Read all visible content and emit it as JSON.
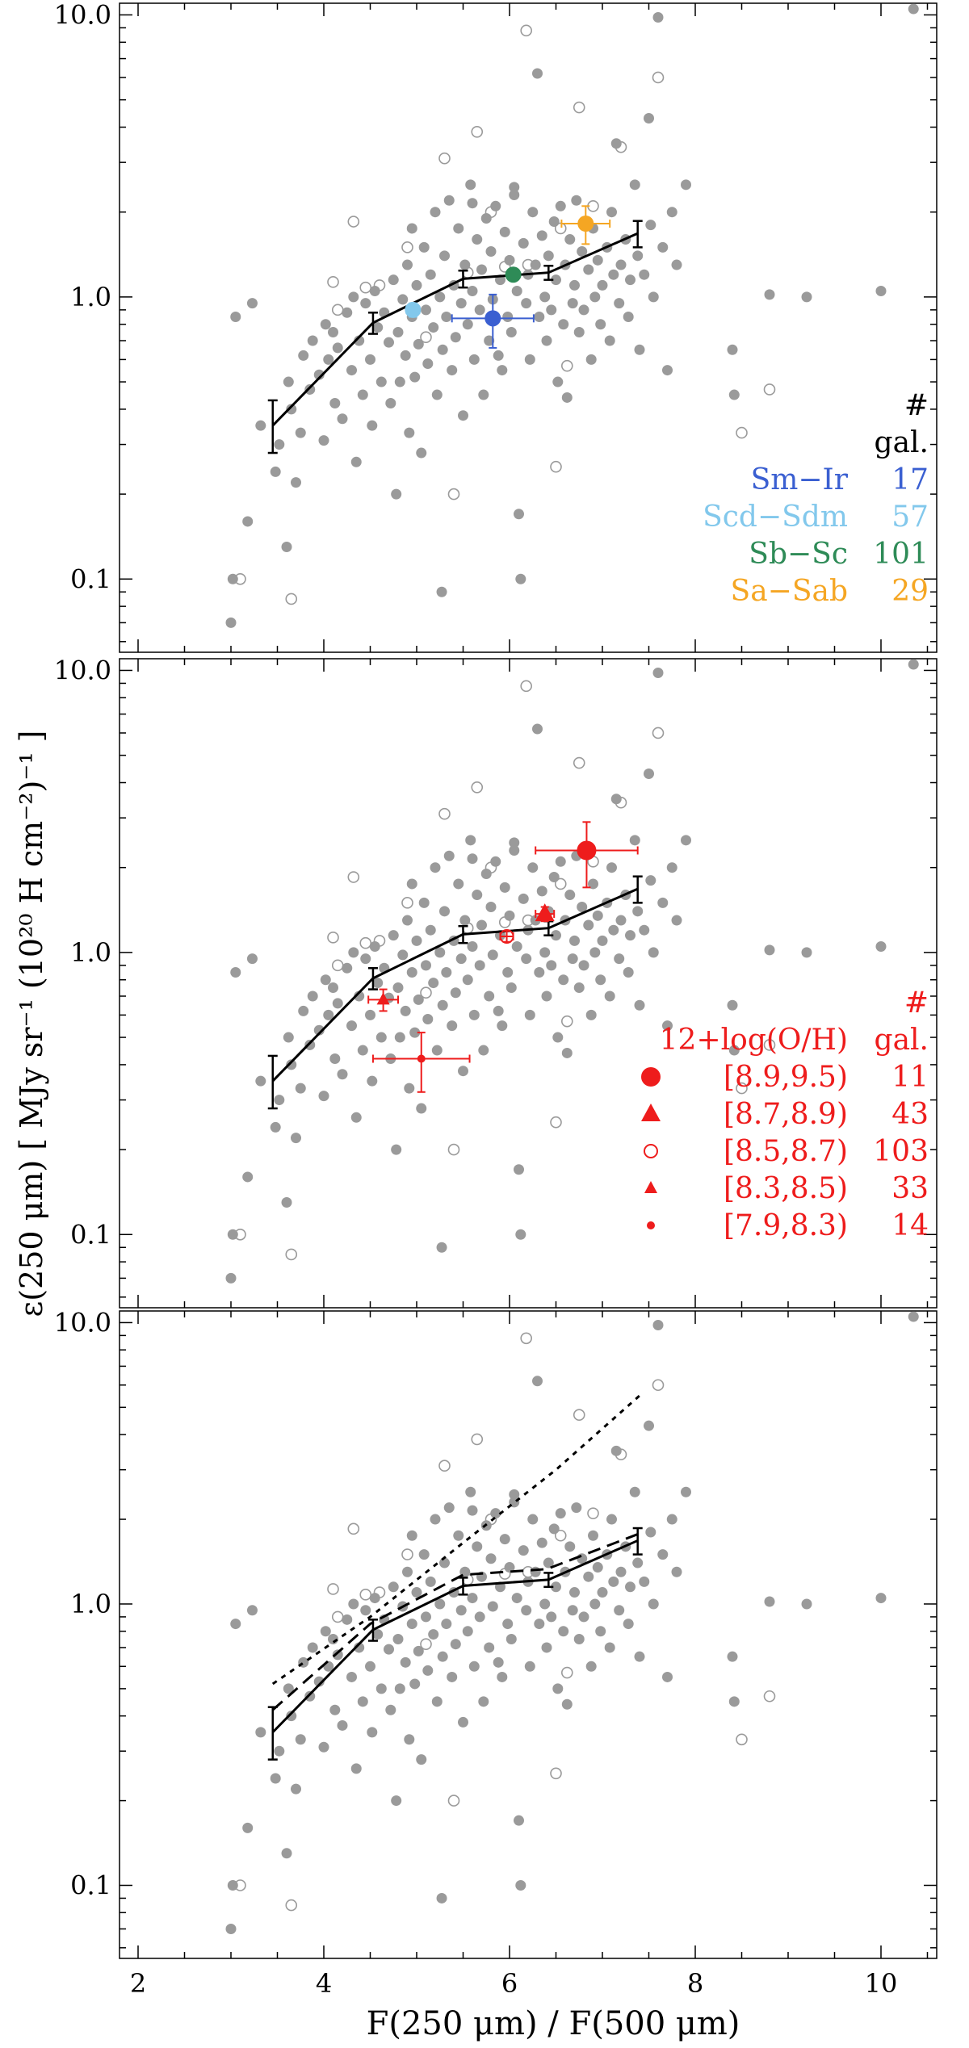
{
  "figure": {
    "xlabel": "F(250 μm) / F(500 μm)",
    "ylabel": "ε(250 μm) [ MJy sr⁻¹ (10²⁰ H cm⁻²)⁻¹ ]"
  },
  "chart_data": [
    {
      "type": "scatter",
      "panel": "top",
      "xlim": [
        1.8,
        10.6
      ],
      "ylim": [
        0.055,
        11.0
      ],
      "yscale": "log",
      "x_ticks": [
        2,
        4,
        6,
        8,
        10
      ],
      "x_tick_labels": [],
      "y_ticks": [
        0.1,
        1.0,
        10.0
      ],
      "y_tick_labels": [
        "0.1",
        "1.0",
        "10.0"
      ],
      "grid": false,
      "legend": {
        "position": "bottom-right",
        "header": [
          "#",
          "gal."
        ],
        "entries": [
          {
            "name": "Sm−Ir",
            "count": "17",
            "color": "#3a5fd1"
          },
          {
            "name": "Scd−Sdm",
            "count": "57",
            "color": "#82c8ec"
          },
          {
            "name": "Sb−Sc",
            "count": "101",
            "color": "#2e8b57"
          },
          {
            "name": "Sa−Sab",
            "count": "29",
            "color": "#f5a623"
          }
        ]
      },
      "series": [
        {
          "name": "Sm−Ir",
          "color": "#3a5fd1",
          "points": [
            {
              "x": 5.82,
              "y": 0.84,
              "xerr": 0.44,
              "yerr_lo": 0.18,
              "yerr_hi": 0.18
            }
          ]
        },
        {
          "name": "Scd−Sdm",
          "color": "#82c8ec",
          "points": [
            {
              "x": 4.96,
              "y": 0.9,
              "xerr": 0.07,
              "yerr_lo": 0.05,
              "yerr_hi": 0.05
            }
          ]
        },
        {
          "name": "Sb−Sc",
          "color": "#2e8b57",
          "points": [
            {
              "x": 6.04,
              "y": 1.2,
              "xerr": 0.06,
              "yerr_lo": 0.05,
              "yerr_hi": 0.05
            }
          ]
        },
        {
          "name": "Sa−Sab",
          "color": "#f5a623",
          "points": [
            {
              "x": 6.82,
              "y": 1.82,
              "xerr": 0.26,
              "yerr_lo": 0.28,
              "yerr_hi": 0.28
            }
          ]
        }
      ]
    },
    {
      "type": "scatter",
      "panel": "middle",
      "xlim": [
        1.8,
        10.6
      ],
      "ylim": [
        0.055,
        11.0
      ],
      "yscale": "log",
      "x_ticks": [
        2,
        4,
        6,
        8,
        10
      ],
      "x_tick_labels": [],
      "y_ticks": [
        0.1,
        1.0,
        10.0
      ],
      "y_tick_labels": [
        "0.1",
        "1.0",
        "10.0"
      ],
      "grid": false,
      "legend": {
        "position": "bottom-right",
        "header": [
          "#",
          "12+log(O/H)",
          "gal."
        ],
        "entries": [
          {
            "name": "[8.9,9.5)",
            "count": "11",
            "marker": "big-circle"
          },
          {
            "name": "[8.7,8.9)",
            "count": "43",
            "marker": "big-triangle"
          },
          {
            "name": "[8.5,8.7)",
            "count": "103",
            "marker": "open-circle"
          },
          {
            "name": "[8.3,8.5)",
            "count": "33",
            "marker": "small-triangle"
          },
          {
            "name": "[7.9,8.3)",
            "count": "14",
            "marker": "small-circle"
          }
        ],
        "color": "#ee1c1c"
      },
      "series": [
        {
          "name": "[8.9,9.5)",
          "marker": "big-circle",
          "color": "#ee1c1c",
          "points": [
            {
              "x": 6.83,
              "y": 2.3,
              "xerr": 0.55,
              "yerr_lo": 0.6,
              "yerr_hi": 0.6
            }
          ]
        },
        {
          "name": "[8.7,8.9)",
          "marker": "big-triangle",
          "color": "#ee1c1c",
          "points": [
            {
              "x": 6.38,
              "y": 1.37,
              "xerr": 0.1,
              "yerr_lo": 0.08,
              "yerr_hi": 0.08
            }
          ]
        },
        {
          "name": "[8.5,8.7)",
          "marker": "open-circle",
          "color": "#ee1c1c",
          "points": [
            {
              "x": 5.97,
              "y": 1.14,
              "xerr": 0.07,
              "yerr_lo": 0.05,
              "yerr_hi": 0.05
            }
          ]
        },
        {
          "name": "[8.3,8.5)",
          "marker": "small-triangle",
          "color": "#ee1c1c",
          "points": [
            {
              "x": 4.64,
              "y": 0.68,
              "xerr": 0.16,
              "yerr_lo": 0.06,
              "yerr_hi": 0.06
            }
          ]
        },
        {
          "name": "[7.9,8.3)",
          "marker": "small-circle",
          "color": "#ee1c1c",
          "points": [
            {
              "x": 5.05,
              "y": 0.42,
              "xerr": 0.52,
              "yerr_lo": 0.1,
              "yerr_hi": 0.1
            }
          ]
        }
      ]
    },
    {
      "type": "scatter",
      "panel": "bottom",
      "xlim": [
        1.8,
        10.6
      ],
      "ylim": [
        0.055,
        11.0
      ],
      "yscale": "log",
      "x_ticks": [
        2,
        4,
        6,
        8,
        10
      ],
      "x_tick_labels": [
        "2",
        "4",
        "6",
        "8",
        "10"
      ],
      "y_ticks": [
        0.1,
        1.0,
        10.0
      ],
      "y_tick_labels": [
        "0.1",
        "1.0",
        "10.0"
      ],
      "grid": false,
      "lines": [
        {
          "name": "",
          "style": "dotted",
          "x": [
            3.45,
            4.5,
            5.5,
            6.5,
            7.4
          ],
          "y": [
            0.52,
            0.9,
            1.65,
            3.0,
            5.5
          ]
        },
        {
          "name": "",
          "style": "dashed",
          "x": [
            3.45,
            4.5,
            5.5,
            6.4,
            7.4
          ],
          "y": [
            0.42,
            0.85,
            1.27,
            1.33,
            1.78
          ]
        }
      ]
    }
  ],
  "shared": {
    "binned_median": {
      "x": [
        3.45,
        4.53,
        5.5,
        6.42,
        7.38
      ],
      "y": [
        0.35,
        0.81,
        1.16,
        1.22,
        1.68
      ],
      "yerr_lo": [
        0.07,
        0.07,
        0.08,
        0.07,
        0.18
      ],
      "yerr_hi": [
        0.08,
        0.07,
        0.08,
        0.07,
        0.18
      ],
      "color": "#000000"
    },
    "galaxies_filled": [
      [
        3.0,
        0.07
      ],
      [
        3.02,
        0.1
      ],
      [
        3.05,
        0.85
      ],
      [
        3.18,
        0.16
      ],
      [
        3.23,
        0.95
      ],
      [
        3.32,
        0.35
      ],
      [
        3.48,
        0.24
      ],
      [
        3.52,
        0.3
      ],
      [
        3.6,
        0.13
      ],
      [
        3.62,
        0.5
      ],
      [
        3.65,
        0.4
      ],
      [
        3.7,
        0.22
      ],
      [
        3.75,
        0.33
      ],
      [
        3.78,
        0.62
      ],
      [
        3.85,
        0.47
      ],
      [
        3.88,
        0.7
      ],
      [
        3.95,
        0.53
      ],
      [
        4.0,
        0.31
      ],
      [
        4.02,
        0.8
      ],
      [
        4.05,
        0.6
      ],
      [
        4.1,
        0.75
      ],
      [
        4.12,
        0.42
      ],
      [
        4.15,
        0.66
      ],
      [
        4.2,
        0.37
      ],
      [
        4.25,
        0.88
      ],
      [
        4.3,
        0.55
      ],
      [
        4.32,
        1.0
      ],
      [
        4.35,
        0.26
      ],
      [
        4.38,
        0.7
      ],
      [
        4.42,
        0.45
      ],
      [
        4.45,
        0.95
      ],
      [
        4.5,
        0.6
      ],
      [
        4.52,
        0.35
      ],
      [
        4.55,
        1.05
      ],
      [
        4.58,
        0.78
      ],
      [
        4.62,
        0.5
      ],
      [
        4.65,
        0.88
      ],
      [
        4.7,
        0.69
      ],
      [
        4.72,
        0.42
      ],
      [
        4.75,
        1.15
      ],
      [
        4.78,
        0.2
      ],
      [
        4.8,
        0.75
      ],
      [
        4.82,
        0.5
      ],
      [
        4.85,
        0.98
      ],
      [
        4.88,
        0.62
      ],
      [
        4.9,
        1.3
      ],
      [
        4.92,
        0.33
      ],
      [
        4.95,
        0.85
      ],
      [
        4.98,
        0.52
      ],
      [
        5.0,
        1.1
      ],
      [
        5.02,
        0.68
      ],
      [
        5.05,
        0.28
      ],
      [
        5.08,
        1.5
      ],
      [
        5.1,
        0.9
      ],
      [
        5.12,
        0.58
      ],
      [
        5.15,
        1.2
      ],
      [
        5.18,
        0.78
      ],
      [
        5.2,
        2.0
      ],
      [
        5.22,
        0.45
      ],
      [
        5.25,
        1.0
      ],
      [
        5.27,
        0.09
      ],
      [
        5.28,
        0.65
      ],
      [
        5.3,
        1.4
      ],
      [
        5.32,
        0.85
      ],
      [
        5.35,
        2.2
      ],
      [
        5.38,
        0.55
      ],
      [
        5.4,
        1.1
      ],
      [
        5.42,
        0.72
      ],
      [
        5.45,
        1.75
      ],
      [
        5.48,
        0.95
      ],
      [
        5.5,
        0.38
      ],
      [
        5.52,
        1.3
      ],
      [
        5.55,
        0.8
      ],
      [
        5.58,
        2.5
      ],
      [
        5.6,
        1.05
      ],
      [
        5.62,
        0.6
      ],
      [
        5.65,
        1.6
      ],
      [
        5.68,
        0.9
      ],
      [
        5.7,
        1.25
      ],
      [
        5.72,
        0.45
      ],
      [
        5.75,
        1.9
      ],
      [
        5.78,
        0.7
      ],
      [
        5.8,
        1.45
      ],
      [
        5.82,
        0.98
      ],
      [
        5.85,
        2.1
      ],
      [
        5.88,
        0.62
      ],
      [
        5.9,
        1.15
      ],
      [
        5.92,
        0.55
      ],
      [
        5.95,
        1.7
      ],
      [
        5.98,
        0.85
      ],
      [
        6.0,
        1.35
      ],
      [
        6.02,
        0.75
      ],
      [
        6.05,
        2.3
      ],
      [
        6.08,
        1.05
      ],
      [
        6.1,
        0.17
      ],
      [
        6.12,
        0.1
      ],
      [
        6.15,
        1.55
      ],
      [
        6.18,
        0.95
      ],
      [
        6.2,
        1.2
      ],
      [
        6.22,
        0.6
      ],
      [
        6.25,
        2.0
      ],
      [
        6.28,
        1.3
      ],
      [
        6.3,
        6.2
      ],
      [
        6.32,
        0.85
      ],
      [
        6.35,
        1.65
      ],
      [
        6.38,
        1.0
      ],
      [
        6.4,
        0.7
      ],
      [
        6.42,
        1.4
      ],
      [
        6.45,
        0.9
      ],
      [
        6.48,
        1.85
      ],
      [
        6.5,
        1.15
      ],
      [
        6.52,
        0.5
      ],
      [
        6.55,
        2.1
      ],
      [
        6.58,
        0.8
      ],
      [
        6.6,
        1.3
      ],
      [
        6.62,
        0.44
      ],
      [
        6.65,
        1.6
      ],
      [
        6.68,
        0.95
      ],
      [
        6.7,
        1.1
      ],
      [
        6.72,
        2.2
      ],
      [
        6.75,
        0.75
      ],
      [
        6.78,
        1.45
      ],
      [
        6.8,
        0.9
      ],
      [
        6.85,
        1.25
      ],
      [
        6.88,
        0.6
      ],
      [
        6.9,
        1.75
      ],
      [
        6.92,
        1.0
      ],
      [
        6.95,
        1.35
      ],
      [
        6.98,
        0.8
      ],
      [
        7.0,
        1.1
      ],
      [
        7.05,
        1.5
      ],
      [
        7.08,
        0.7
      ],
      [
        7.1,
        2.0
      ],
      [
        7.12,
        1.2
      ],
      [
        7.15,
        3.5
      ],
      [
        7.18,
        0.95
      ],
      [
        7.2,
        1.3
      ],
      [
        7.25,
        1.6
      ],
      [
        7.28,
        0.85
      ],
      [
        7.3,
        1.15
      ],
      [
        7.35,
        2.5
      ],
      [
        7.38,
        1.4
      ],
      [
        7.4,
        0.65
      ],
      [
        7.45,
        1.2
      ],
      [
        7.5,
        4.3
      ],
      [
        7.52,
        1.8
      ],
      [
        7.55,
        1.0
      ],
      [
        7.6,
        9.8
      ],
      [
        7.65,
        1.5
      ],
      [
        7.7,
        0.55
      ],
      [
        7.75,
        2.0
      ],
      [
        7.8,
        1.3
      ],
      [
        7.9,
        2.5
      ],
      [
        8.4,
        0.65
      ],
      [
        8.42,
        0.45
      ],
      [
        8.8,
        1.02
      ],
      [
        9.2,
        1.0
      ],
      [
        10.0,
        1.05
      ],
      [
        10.35,
        10.5
      ],
      [
        6.05,
        2.45
      ],
      [
        5.6,
        2.15
      ],
      [
        4.95,
        1.75
      ]
    ],
    "galaxies_open": [
      [
        3.1,
        0.1
      ],
      [
        3.65,
        0.085
      ],
      [
        4.1,
        1.13
      ],
      [
        4.15,
        0.9
      ],
      [
        4.32,
        1.85
      ],
      [
        4.45,
        1.08
      ],
      [
        4.6,
        1.1
      ],
      [
        4.9,
        1.5
      ],
      [
        5.1,
        0.72
      ],
      [
        5.3,
        3.1
      ],
      [
        5.4,
        0.2
      ],
      [
        5.55,
        1.22
      ],
      [
        5.65,
        3.85
      ],
      [
        5.8,
        2.0
      ],
      [
        5.95,
        1.28
      ],
      [
        6.18,
        8.8
      ],
      [
        6.5,
        0.25
      ],
      [
        6.55,
        1.75
      ],
      [
        6.62,
        0.57
      ],
      [
        6.75,
        4.7
      ],
      [
        6.9,
        2.1
      ],
      [
        7.2,
        3.4
      ],
      [
        7.6,
        6.0
      ],
      [
        8.5,
        0.33
      ],
      [
        8.8,
        0.47
      ],
      [
        6.2,
        1.3
      ]
    ],
    "galaxy_color": "#9a9a9a"
  }
}
